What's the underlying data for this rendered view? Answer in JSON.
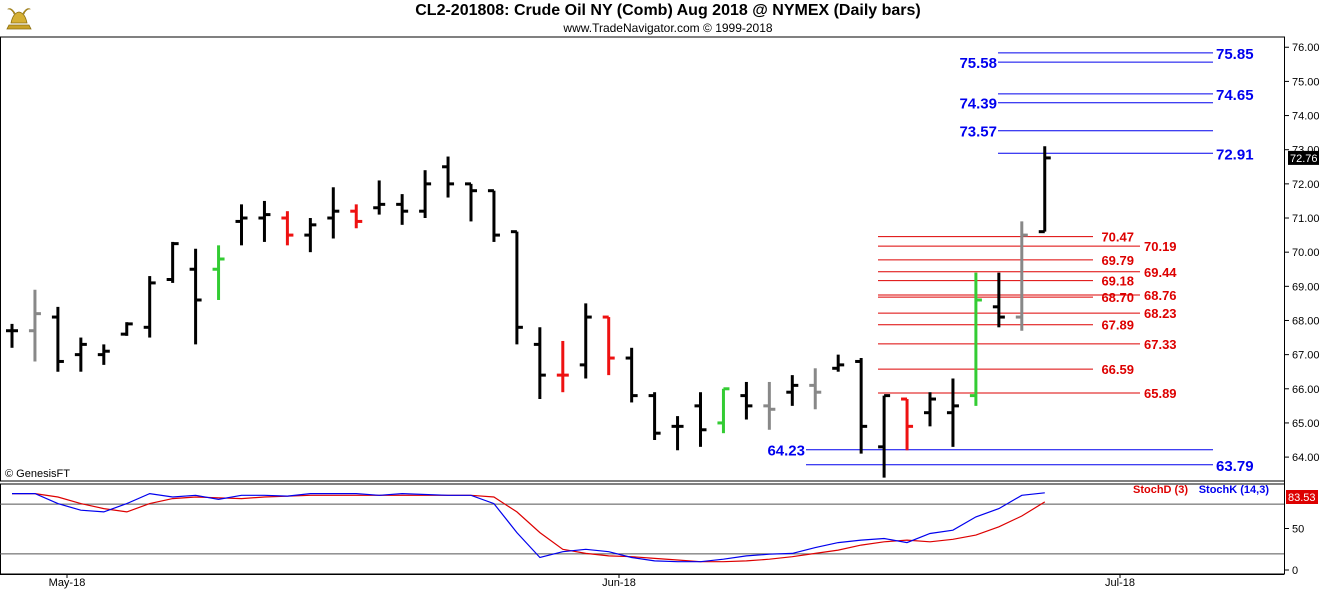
{
  "header": {
    "title": "CL2-201808:  Crude Oil NY (Comb) Aug 2018 @ NYMEX  (Daily bars)",
    "subtitle": "www.TradeNavigator.com © 1999-2018"
  },
  "footer": {
    "copyright": "© GenesisFT"
  },
  "chart_data": [
    {
      "type": "ohlc",
      "price_axis": {
        "ylim": [
          63.3,
          76.3
        ],
        "ticks": [
          "64.00",
          "65.00",
          "66.00",
          "67.00",
          "68.00",
          "69.00",
          "70.00",
          "71.00",
          "72.00",
          "73.00",
          "74.00",
          "75.00",
          "76.00"
        ],
        "last_price": "72.76"
      },
      "x_axis": {
        "ticks": [
          "May-18",
          "Jun-18",
          "Jul-18"
        ]
      },
      "colors": {
        "up_trigger": "#33cc33",
        "down_trigger": "#ee1111",
        "neutral": "#888888",
        "normal": "#000000"
      },
      "bars": [
        {
          "o": 67.7,
          "h": 67.9,
          "l": 67.2,
          "c": 67.7,
          "color": "#000000"
        },
        {
          "o": 67.7,
          "h": 68.9,
          "l": 66.8,
          "c": 68.2,
          "color": "#888888"
        },
        {
          "o": 68.1,
          "h": 68.4,
          "l": 66.5,
          "c": 66.8,
          "color": "#000000"
        },
        {
          "o": 67.0,
          "h": 67.5,
          "l": 66.5,
          "c": 67.3,
          "color": "#000000"
        },
        {
          "o": 67.0,
          "h": 67.3,
          "l": 66.7,
          "c": 67.1,
          "color": "#000000"
        },
        {
          "o": 67.6,
          "h": 67.95,
          "l": 67.55,
          "c": 67.9,
          "color": "#000000"
        },
        {
          "o": 67.8,
          "h": 69.3,
          "l": 67.5,
          "c": 69.1,
          "color": "#000000"
        },
        {
          "o": 69.2,
          "h": 70.3,
          "l": 69.1,
          "c": 70.25,
          "color": "#000000"
        },
        {
          "o": 69.5,
          "h": 70.1,
          "l": 67.3,
          "c": 68.6,
          "color": "#000000"
        },
        {
          "o": 69.5,
          "h": 70.2,
          "l": 68.6,
          "c": 69.8,
          "color": "#33cc33"
        },
        {
          "o": 70.9,
          "h": 71.4,
          "l": 70.2,
          "c": 71.0,
          "color": "#000000"
        },
        {
          "o": 71.0,
          "h": 71.5,
          "l": 70.3,
          "c": 71.1,
          "color": "#000000"
        },
        {
          "o": 71.0,
          "h": 71.2,
          "l": 70.2,
          "c": 70.5,
          "color": "#ee1111"
        },
        {
          "o": 70.5,
          "h": 71.0,
          "l": 70.0,
          "c": 70.8,
          "color": "#000000"
        },
        {
          "o": 71.0,
          "h": 71.9,
          "l": 70.4,
          "c": 71.2,
          "color": "#000000"
        },
        {
          "o": 71.2,
          "h": 71.4,
          "l": 70.7,
          "c": 70.9,
          "color": "#ee1111"
        },
        {
          "o": 71.3,
          "h": 72.1,
          "l": 71.1,
          "c": 71.4,
          "color": "#000000"
        },
        {
          "o": 71.4,
          "h": 71.7,
          "l": 70.8,
          "c": 71.2,
          "color": "#000000"
        },
        {
          "o": 71.2,
          "h": 72.4,
          "l": 71.0,
          "c": 72.0,
          "color": "#000000"
        },
        {
          "o": 72.5,
          "h": 72.8,
          "l": 71.6,
          "c": 72.0,
          "color": "#000000"
        },
        {
          "o": 72.0,
          "h": 72.0,
          "l": 70.9,
          "c": 71.8,
          "color": "#000000"
        },
        {
          "o": 71.8,
          "h": 71.8,
          "l": 70.3,
          "c": 70.5,
          "color": "#000000"
        },
        {
          "o": 70.6,
          "h": 70.6,
          "l": 67.3,
          "c": 67.8,
          "color": "#000000"
        },
        {
          "o": 67.3,
          "h": 67.8,
          "l": 65.7,
          "c": 66.4,
          "color": "#000000"
        },
        {
          "o": 66.4,
          "h": 67.4,
          "l": 65.9,
          "c": 66.4,
          "color": "#ee1111"
        },
        {
          "o": 66.7,
          "h": 68.5,
          "l": 66.3,
          "c": 68.1,
          "color": "#000000"
        },
        {
          "o": 68.1,
          "h": 68.1,
          "l": 66.4,
          "c": 66.9,
          "color": "#ee1111"
        },
        {
          "o": 66.9,
          "h": 67.2,
          "l": 65.6,
          "c": 65.8,
          "color": "#000000"
        },
        {
          "o": 65.8,
          "h": 65.9,
          "l": 64.5,
          "c": 64.7,
          "color": "#000000"
        },
        {
          "o": 64.9,
          "h": 65.2,
          "l": 64.2,
          "c": 64.9,
          "color": "#000000"
        },
        {
          "o": 65.5,
          "h": 65.9,
          "l": 64.3,
          "c": 64.8,
          "color": "#000000"
        },
        {
          "o": 65.0,
          "h": 66.0,
          "l": 64.7,
          "c": 66.0,
          "color": "#33cc33"
        },
        {
          "o": 65.8,
          "h": 66.2,
          "l": 65.1,
          "c": 65.5,
          "color": "#000000"
        },
        {
          "o": 65.5,
          "h": 66.2,
          "l": 64.8,
          "c": 65.4,
          "color": "#888888"
        },
        {
          "o": 65.9,
          "h": 66.4,
          "l": 65.5,
          "c": 66.1,
          "color": "#000000"
        },
        {
          "o": 66.1,
          "h": 66.6,
          "l": 65.4,
          "c": 65.9,
          "color": "#888888"
        },
        {
          "o": 66.6,
          "h": 67.0,
          "l": 66.5,
          "c": 66.7,
          "color": "#000000"
        },
        {
          "o": 66.8,
          "h": 66.9,
          "l": 64.1,
          "c": 64.9,
          "color": "#000000"
        },
        {
          "o": 64.3,
          "h": 65.8,
          "l": 63.4,
          "c": 65.8,
          "color": "#000000"
        },
        {
          "o": 65.7,
          "h": 65.7,
          "l": 64.2,
          "c": 64.9,
          "color": "#ee1111"
        },
        {
          "o": 65.3,
          "h": 65.9,
          "l": 64.9,
          "c": 65.7,
          "color": "#000000"
        },
        {
          "o": 65.3,
          "h": 66.3,
          "l": 64.3,
          "c": 65.5,
          "color": "#000000"
        },
        {
          "o": 65.8,
          "h": 69.4,
          "l": 65.5,
          "c": 68.6,
          "color": "#33cc33"
        },
        {
          "o": 68.4,
          "h": 69.4,
          "l": 67.8,
          "c": 68.1,
          "color": "#000000"
        },
        {
          "o": 68.1,
          "h": 70.9,
          "l": 67.7,
          "c": 70.5,
          "color": "#888888"
        },
        {
          "o": 70.6,
          "h": 73.1,
          "l": 70.6,
          "c": 72.76,
          "color": "#000000"
        }
      ],
      "levels": [
        {
          "label": "75.85",
          "value": 75.85,
          "color": "#0000ee",
          "side": "right"
        },
        {
          "label": "75.58",
          "value": 75.58,
          "color": "#0000ee",
          "side": "left"
        },
        {
          "label": "74.65",
          "value": 74.65,
          "color": "#0000ee",
          "side": "right"
        },
        {
          "label": "74.39",
          "value": 74.39,
          "color": "#0000ee",
          "side": "left"
        },
        {
          "label": "73.57",
          "value": 73.57,
          "color": "#0000ee",
          "side": "left"
        },
        {
          "label": "72.91",
          "value": 72.91,
          "color": "#0000ee",
          "side": "right"
        },
        {
          "label": "70.47",
          "value": 70.47,
          "color": "#dd0000",
          "side": "left"
        },
        {
          "label": "70.19",
          "value": 70.19,
          "color": "#dd0000",
          "side": "right"
        },
        {
          "label": "69.79",
          "value": 69.79,
          "color": "#dd0000",
          "side": "left"
        },
        {
          "label": "69.44",
          "value": 69.44,
          "color": "#dd0000",
          "side": "right"
        },
        {
          "label": "69.18",
          "value": 69.18,
          "color": "#dd0000",
          "side": "left"
        },
        {
          "label": "68.76",
          "value": 68.76,
          "color": "#dd0000",
          "side": "right"
        },
        {
          "label": "68.70",
          "value": 68.7,
          "color": "#dd0000",
          "side": "left"
        },
        {
          "label": "68.23",
          "value": 68.23,
          "color": "#dd0000",
          "side": "right"
        },
        {
          "label": "67.89",
          "value": 67.89,
          "color": "#dd0000",
          "side": "left"
        },
        {
          "label": "67.33",
          "value": 67.33,
          "color": "#dd0000",
          "side": "right"
        },
        {
          "label": "66.59",
          "value": 66.59,
          "color": "#dd0000",
          "side": "left"
        },
        {
          "label": "65.89",
          "value": 65.89,
          "color": "#dd0000",
          "side": "right"
        },
        {
          "label": "64.23",
          "value": 64.23,
          "color": "#0000ee",
          "side": "left"
        },
        {
          "label": "63.79",
          "value": 63.79,
          "color": "#0000ee",
          "side": "right"
        }
      ]
    },
    {
      "type": "line",
      "ylim": [
        0,
        100
      ],
      "ticks": [
        "0",
        "50"
      ],
      "reference_lines": [
        80,
        20
      ],
      "last_value": "83.53",
      "series": [
        {
          "name": "StochD (3)",
          "color": "#dd0000",
          "values": [
            92,
            92,
            88,
            80,
            74,
            70,
            80,
            86,
            88,
            87,
            86,
            88,
            89,
            90,
            90,
            90,
            90,
            90,
            90,
            90,
            90,
            88,
            70,
            45,
            25,
            20,
            17,
            16,
            14,
            12,
            10,
            10,
            11,
            13,
            16,
            20,
            24,
            30,
            34,
            36,
            34,
            37,
            42,
            52,
            65,
            82
          ]
        },
        {
          "name": "StochK (14,3)",
          "color": "#0000ee",
          "values": [
            92,
            92,
            80,
            72,
            70,
            80,
            92,
            88,
            90,
            85,
            90,
            90,
            89,
            92,
            92,
            92,
            90,
            92,
            91,
            90,
            90,
            80,
            45,
            15,
            22,
            25,
            22,
            15,
            11,
            10,
            10,
            13,
            17,
            19,
            20,
            27,
            33,
            36,
            38,
            33,
            44,
            48,
            64,
            74,
            90,
            93
          ]
        }
      ]
    }
  ]
}
